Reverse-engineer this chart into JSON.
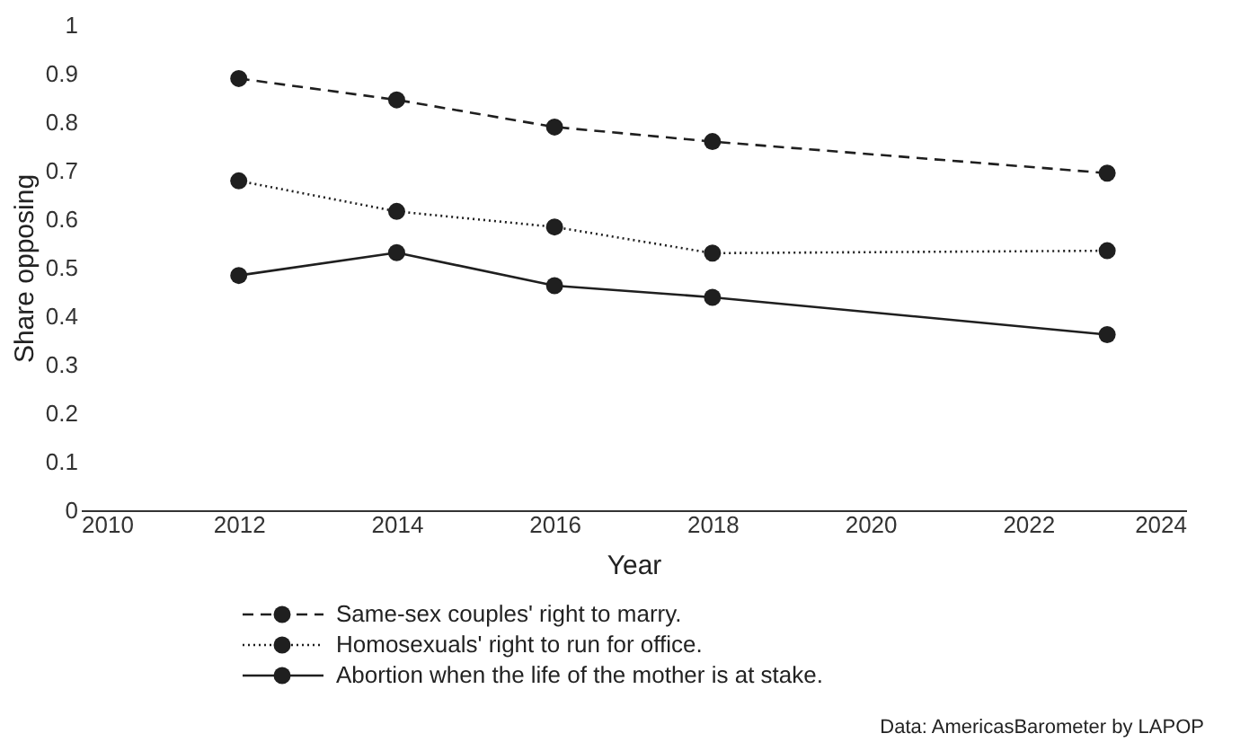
{
  "chart_data": {
    "type": "line",
    "xlabel": "Year",
    "ylabel": "Share opposing",
    "x": [
      2012,
      2014,
      2016,
      2018,
      2023
    ],
    "series": [
      {
        "name": "Same-sex couples' right to marry.",
        "color": "#1f1f1f",
        "line_style": "dashed",
        "values": [
          0.89,
          0.846,
          0.79,
          0.76,
          0.695
        ]
      },
      {
        "name": "Homosexuals' right to run for office.",
        "color": "#1f1f1f",
        "line_style": "dotted",
        "values": [
          0.679,
          0.616,
          0.584,
          0.53,
          0.535
        ]
      },
      {
        "name": "Abortion when the life of the mother is at stake.",
        "color": "#1f1f1f",
        "line_style": "solid",
        "values": [
          0.484,
          0.531,
          0.463,
          0.439,
          0.362
        ]
      }
    ],
    "xlim": [
      2010,
      2024
    ],
    "xticks": [
      2010,
      2012,
      2014,
      2016,
      2018,
      2020,
      2022,
      2024
    ],
    "ylim": [
      0,
      1
    ],
    "yticks": [
      0,
      0.1,
      0.2,
      0.3,
      0.4,
      0.5,
      0.6,
      0.7,
      0.8,
      0.9,
      1
    ],
    "grid": false,
    "legend": "bottom",
    "marker": "circle",
    "annotations": [
      "Data: AmericasBarometer by LAPOP"
    ]
  }
}
